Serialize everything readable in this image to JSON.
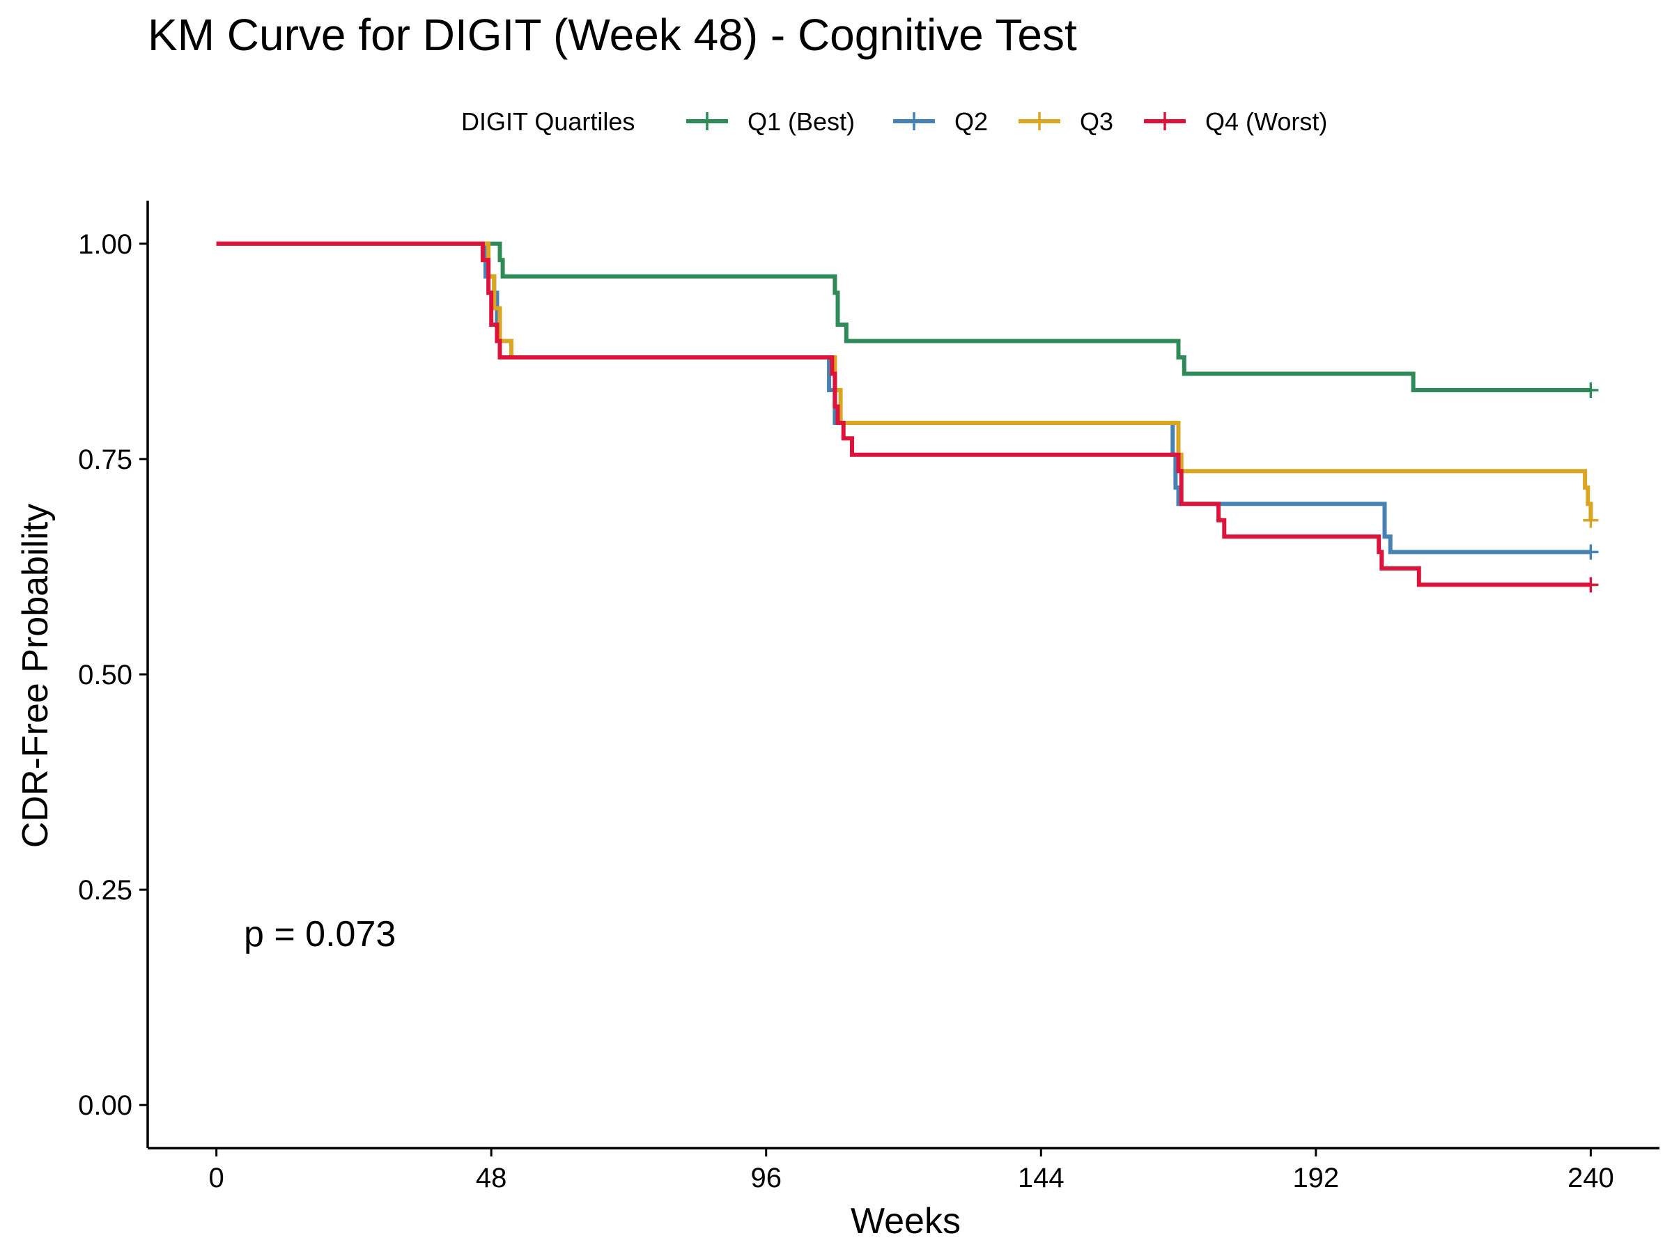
{
  "chart_data": {
    "type": "line",
    "step": true,
    "title": "KM Curve for DIGIT (Week 48) - Cognitive Test",
    "xlabel": "Weeks",
    "ylabel": "CDR-Free Probability",
    "xlim": [
      -12,
      252
    ],
    "ylim": [
      -0.05,
      1.05
    ],
    "xticks": [
      0,
      48,
      96,
      144,
      192,
      240
    ],
    "xtick_labels": [
      "0",
      "48",
      "96",
      "144",
      "192",
      "240"
    ],
    "yticks": [
      0,
      0.25,
      0.5,
      0.75,
      1.0
    ],
    "ytick_labels": [
      "0.00",
      "0.25",
      "0.50",
      "0.75",
      "1.00"
    ],
    "grid": false,
    "legend": {
      "title": "DIGIT Quartiles",
      "position": "top"
    },
    "annotation": "p = 0.073",
    "series": [
      {
        "name": "Q1 (Best)",
        "color": "#2E8B57",
        "points": [
          [
            0,
            1.0
          ],
          [
            49.5,
            1.0
          ],
          [
            49.5,
            0.981
          ],
          [
            50,
            0.981
          ],
          [
            50,
            0.962
          ],
          [
            108,
            0.962
          ],
          [
            108,
            0.943
          ],
          [
            108.5,
            0.943
          ],
          [
            108.5,
            0.906
          ],
          [
            110,
            0.906
          ],
          [
            110,
            0.887
          ],
          [
            168,
            0.887
          ],
          [
            168,
            0.868
          ],
          [
            169,
            0.868
          ],
          [
            169,
            0.849
          ],
          [
            209,
            0.849
          ],
          [
            209,
            0.83
          ],
          [
            240,
            0.83
          ]
        ],
        "censor": [
          [
            240,
            0.83
          ]
        ]
      },
      {
        "name": "Q2",
        "color": "#4682B4",
        "points": [
          [
            0,
            1.0
          ],
          [
            47,
            1.0
          ],
          [
            47,
            0.962
          ],
          [
            48.5,
            0.962
          ],
          [
            48.5,
            0.943
          ],
          [
            49,
            0.943
          ],
          [
            49,
            0.906
          ],
          [
            49.5,
            0.906
          ],
          [
            49.5,
            0.868
          ],
          [
            107,
            0.868
          ],
          [
            107,
            0.83
          ],
          [
            108,
            0.83
          ],
          [
            108,
            0.792
          ],
          [
            167,
            0.792
          ],
          [
            167,
            0.755
          ],
          [
            167.5,
            0.755
          ],
          [
            167.5,
            0.717
          ],
          [
            168,
            0.717
          ],
          [
            168,
            0.698
          ],
          [
            204,
            0.698
          ],
          [
            204,
            0.66
          ],
          [
            205,
            0.66
          ],
          [
            205,
            0.642
          ],
          [
            240,
            0.642
          ]
        ],
        "censor": [
          [
            240,
            0.642
          ]
        ]
      },
      {
        "name": "Q3",
        "color": "#DAA520",
        "points": [
          [
            0,
            1.0
          ],
          [
            47.5,
            1.0
          ],
          [
            47.5,
            0.962
          ],
          [
            48.5,
            0.962
          ],
          [
            48.5,
            0.925
          ],
          [
            49.5,
            0.925
          ],
          [
            49.5,
            0.887
          ],
          [
            51.5,
            0.887
          ],
          [
            51.5,
            0.868
          ],
          [
            108,
            0.868
          ],
          [
            108,
            0.83
          ],
          [
            109,
            0.83
          ],
          [
            109,
            0.792
          ],
          [
            168,
            0.792
          ],
          [
            168,
            0.755
          ],
          [
            168.5,
            0.755
          ],
          [
            168.5,
            0.736
          ],
          [
            239,
            0.736
          ],
          [
            239,
            0.717
          ],
          [
            239.5,
            0.717
          ],
          [
            239.5,
            0.698
          ],
          [
            240,
            0.698
          ],
          [
            240,
            0.679
          ]
        ],
        "censor": [
          [
            240,
            0.679
          ]
        ]
      },
      {
        "name": "Q4 (Worst)",
        "color": "#DC143C",
        "points": [
          [
            0,
            1.0
          ],
          [
            46.5,
            1.0
          ],
          [
            46.5,
            0.981
          ],
          [
            47.5,
            0.981
          ],
          [
            47.5,
            0.943
          ],
          [
            48,
            0.943
          ],
          [
            48,
            0.906
          ],
          [
            49,
            0.906
          ],
          [
            49,
            0.887
          ],
          [
            49.5,
            0.887
          ],
          [
            49.5,
            0.868
          ],
          [
            107.5,
            0.868
          ],
          [
            107.5,
            0.849
          ],
          [
            108,
            0.849
          ],
          [
            108,
            0.811
          ],
          [
            108.5,
            0.811
          ],
          [
            108.5,
            0.792
          ],
          [
            109.5,
            0.792
          ],
          [
            109.5,
            0.774
          ],
          [
            111,
            0.774
          ],
          [
            111,
            0.755
          ],
          [
            168,
            0.755
          ],
          [
            168,
            0.736
          ],
          [
            168.5,
            0.736
          ],
          [
            168.5,
            0.698
          ],
          [
            175,
            0.698
          ],
          [
            175,
            0.679
          ],
          [
            176,
            0.679
          ],
          [
            176,
            0.66
          ],
          [
            203,
            0.66
          ],
          [
            203,
            0.642
          ],
          [
            203.5,
            0.642
          ],
          [
            203.5,
            0.623
          ],
          [
            210,
            0.623
          ],
          [
            210,
            0.604
          ],
          [
            240,
            0.604
          ]
        ],
        "censor": [
          [
            240,
            0.604
          ]
        ]
      }
    ]
  }
}
